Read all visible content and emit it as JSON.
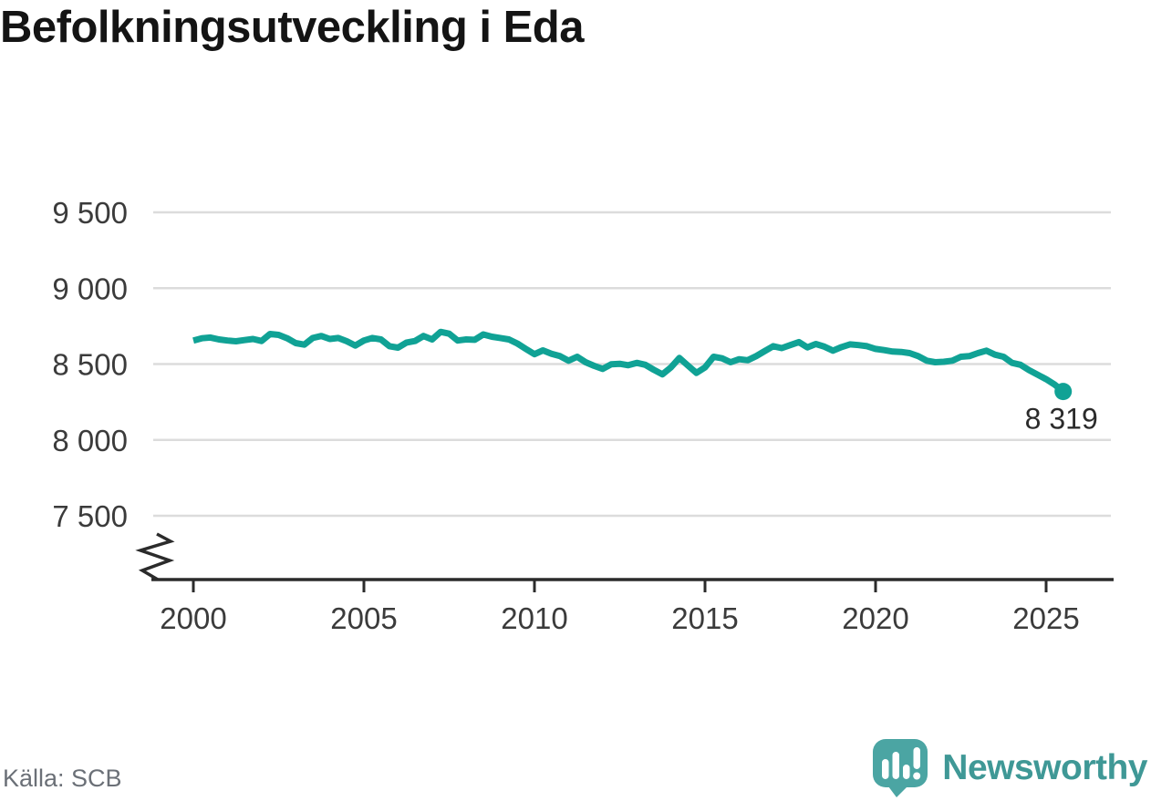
{
  "header": {
    "title": "Befolkningsutveckling i Eda"
  },
  "chart_data": {
    "type": "line",
    "title": "Befolkningsutveckling i Eda",
    "xlabel": "",
    "ylabel": "",
    "x_start": 2000,
    "x_step": 0.25,
    "x_end": 2025.5,
    "x_ticks": [
      2000,
      2005,
      2010,
      2015,
      2020,
      2025
    ],
    "y_ticks": [
      7500,
      8000,
      8500,
      9000,
      9500
    ],
    "ylim": [
      7500,
      9500
    ],
    "axis_break": true,
    "grid": true,
    "legend": "none",
    "line_color": "#10A295",
    "grid_color": "#DCDCDC",
    "axis_color": "#2B2B2B",
    "tick_label_color": "#3B3B3B",
    "end_label": "8 319",
    "end_value": 8319,
    "values": [
      8655,
      8670,
      8675,
      8662,
      8655,
      8650,
      8658,
      8665,
      8652,
      8698,
      8692,
      8670,
      8638,
      8628,
      8672,
      8685,
      8665,
      8672,
      8650,
      8622,
      8655,
      8672,
      8662,
      8618,
      8608,
      8642,
      8652,
      8685,
      8662,
      8712,
      8700,
      8655,
      8662,
      8660,
      8695,
      8680,
      8672,
      8662,
      8635,
      8600,
      8565,
      8590,
      8568,
      8552,
      8522,
      8548,
      8512,
      8488,
      8468,
      8498,
      8502,
      8492,
      8508,
      8495,
      8462,
      8432,
      8478,
      8540,
      8490,
      8442,
      8478,
      8548,
      8538,
      8512,
      8532,
      8525,
      8552,
      8585,
      8618,
      8605,
      8625,
      8645,
      8610,
      8632,
      8615,
      8588,
      8612,
      8630,
      8625,
      8618,
      8600,
      8592,
      8582,
      8580,
      8572,
      8552,
      8522,
      8512,
      8515,
      8522,
      8548,
      8552,
      8572,
      8588,
      8562,
      8548,
      8508,
      8495,
      8460,
      8430,
      8400,
      8365,
      8319
    ]
  },
  "footer": {
    "source": "Källa: SCB",
    "brand": "Newsworthy",
    "brand_color": "#3F9896",
    "logo_color": "#4BA5A3"
  }
}
